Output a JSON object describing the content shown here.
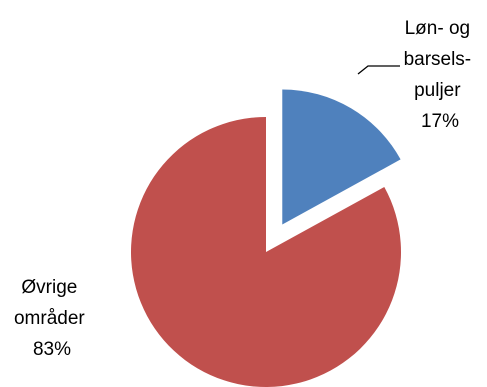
{
  "chart_data": {
    "type": "pie",
    "title": "",
    "slices": [
      {
        "label_lines": [
          "Løn- og",
          "barsels-",
          "puljer"
        ],
        "percent_label": "17%",
        "value": 17,
        "color": "#4F81BD",
        "exploded": true
      },
      {
        "label_lines": [
          "Øvrige",
          "områder"
        ],
        "percent_label": "83%",
        "value": 83,
        "color": "#C0504D",
        "exploded": false
      }
    ],
    "legend": "none"
  }
}
